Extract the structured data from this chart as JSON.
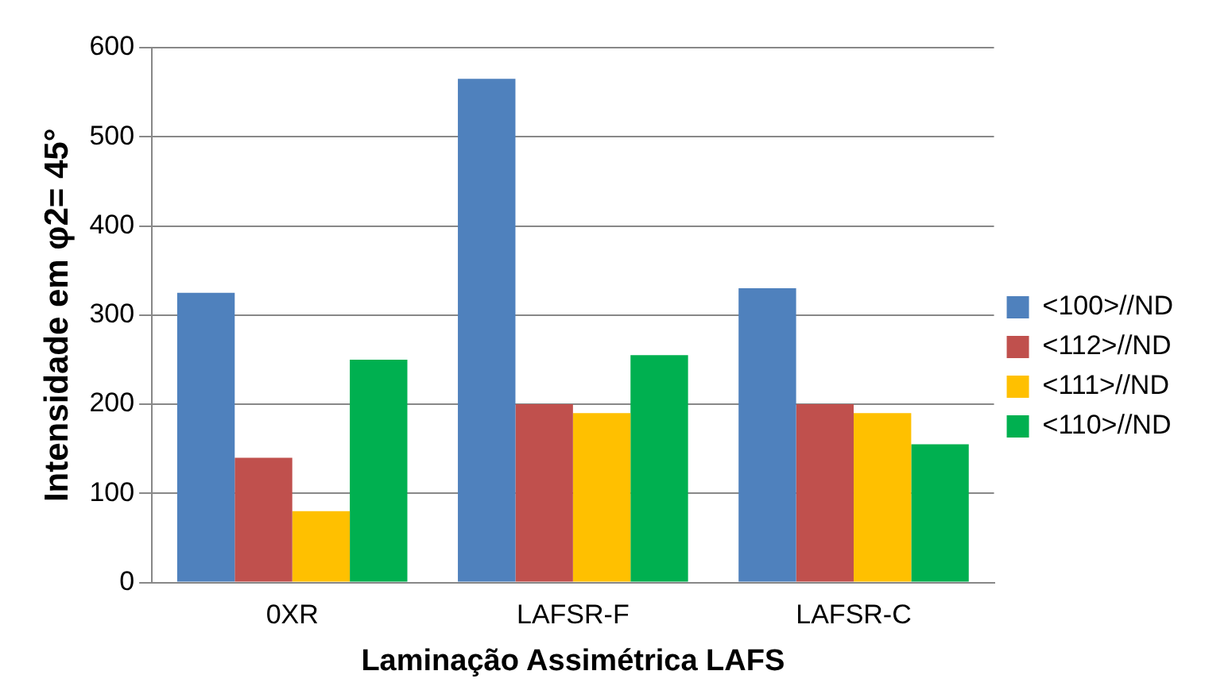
{
  "chart_data": {
    "type": "bar",
    "xlabel": "Laminação Assimétrica LAFS",
    "ylabel": "Intensidade em φ2= 45°",
    "categories": [
      "0XR",
      "LAFSR-F",
      "LAFSR-C"
    ],
    "series": [
      {
        "name": "<100>//ND",
        "color": "#4f81bd",
        "values": [
          325,
          565,
          330
        ]
      },
      {
        "name": "<112>//ND",
        "color": "#c0504d",
        "values": [
          140,
          200,
          200
        ]
      },
      {
        "name": "<111>//ND",
        "color": "#ffc000",
        "values": [
          80,
          190,
          190
        ]
      },
      {
        "name": "<110>//ND",
        "color": "#00b050",
        "values": [
          250,
          255,
          155
        ]
      }
    ],
    "ylim": [
      0,
      600
    ],
    "yticks": [
      0,
      100,
      200,
      300,
      400,
      500,
      600
    ],
    "grid": "y",
    "legend": "right"
  }
}
